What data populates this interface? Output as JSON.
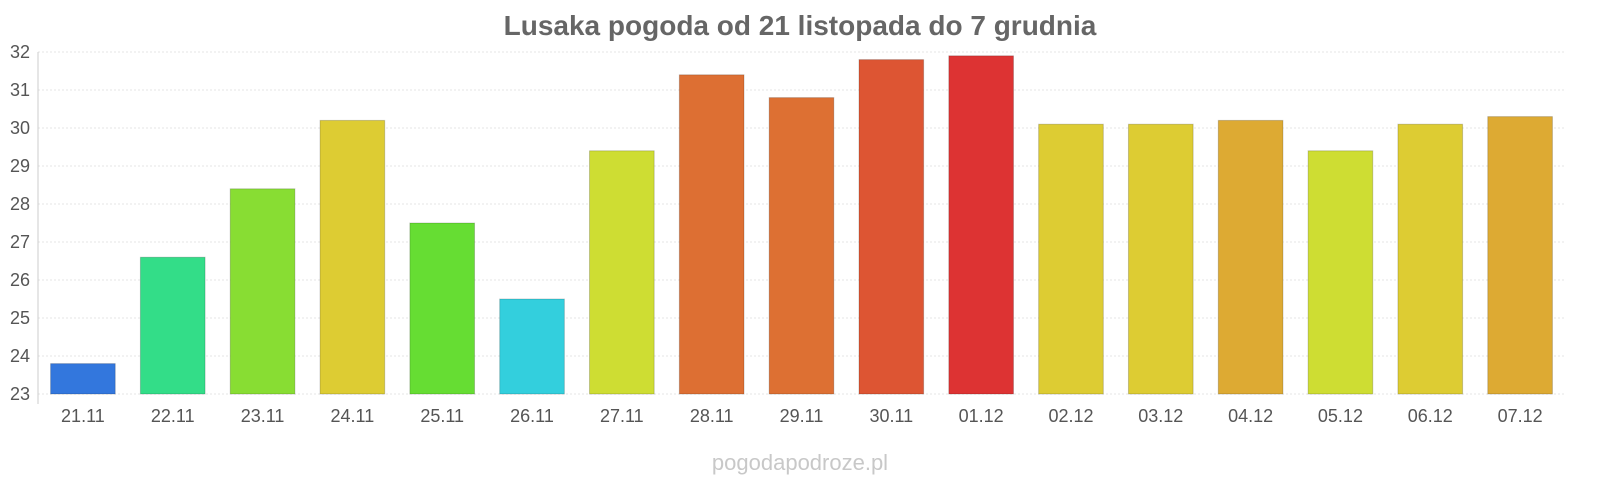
{
  "chart_data": {
    "type": "bar",
    "title": "Lusaka pogoda od 21 listopada do 7 grudnia",
    "xlabel": "",
    "ylabel": "",
    "ylim": [
      23,
      32
    ],
    "yticks": [
      23,
      24,
      25,
      26,
      27,
      28,
      29,
      30,
      31,
      32
    ],
    "grid": true,
    "categories": [
      "21.11",
      "22.11",
      "23.11",
      "24.11",
      "25.11",
      "26.11",
      "27.11",
      "28.11",
      "29.11",
      "30.11",
      "01.12",
      "02.12",
      "03.12",
      "04.12",
      "05.12",
      "06.12",
      "07.12"
    ],
    "values": [
      23.8,
      26.6,
      28.4,
      30.2,
      27.5,
      25.5,
      29.4,
      31.4,
      30.8,
      31.8,
      31.9,
      30.1,
      30.1,
      30.2,
      29.4,
      30.1,
      30.3
    ],
    "colors": [
      "#3377dd",
      "#33dd88",
      "#88dd33",
      "#ddcc33",
      "#66dd33",
      "#33cfdd",
      "#cedd33",
      "#dd6f33",
      "#dd7033",
      "#dd5533",
      "#dd3333",
      "#ddcc33",
      "#ddcc33",
      "#ddaa33",
      "#cedd33",
      "#ddcc33",
      "#ddaa33"
    ]
  },
  "footer": {
    "watermark": "pogodapodroze.pl"
  }
}
